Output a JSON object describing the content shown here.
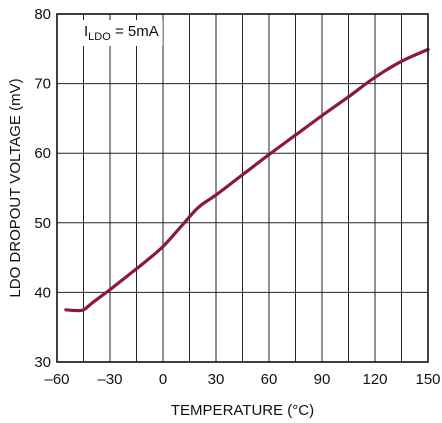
{
  "chart_data": {
    "type": "line",
    "xlabel": "TEMPERATURE (°C)",
    "ylabel": "LDO DROPOUT VOLTAGE (mV)",
    "xlim": [
      -60,
      150
    ],
    "ylim": [
      30,
      80
    ],
    "xticks": [
      -60,
      -30,
      0,
      30,
      60,
      90,
      120,
      150
    ],
    "xtick_labels": [
      "–60",
      "–30",
      "0",
      "30",
      "60",
      "90",
      "120",
      "150"
    ],
    "yticks": [
      30,
      40,
      50,
      60,
      70,
      80
    ],
    "ytick_labels": [
      "30",
      "40",
      "50",
      "60",
      "70",
      "80"
    ],
    "x_grid_step": 15,
    "y_grid_step": 10,
    "grid": true,
    "series": [
      {
        "color": "#8b1a3a",
        "x": [
          -55,
          -50,
          -45,
          -40,
          -30,
          -20,
          -10,
          0,
          10,
          20,
          30,
          45,
          60,
          75,
          90,
          105,
          120,
          135,
          150
        ],
        "y": [
          37.5,
          37.4,
          37.5,
          38.5,
          40.4,
          42.4,
          44.4,
          46.6,
          49.4,
          52.2,
          54.0,
          56.9,
          59.8,
          62.6,
          65.4,
          68.1,
          70.9,
          73.2,
          74.9
        ]
      }
    ],
    "annotation": {
      "prefix": "I",
      "subscript": "LDO",
      "suffix": " = 5mA"
    }
  }
}
